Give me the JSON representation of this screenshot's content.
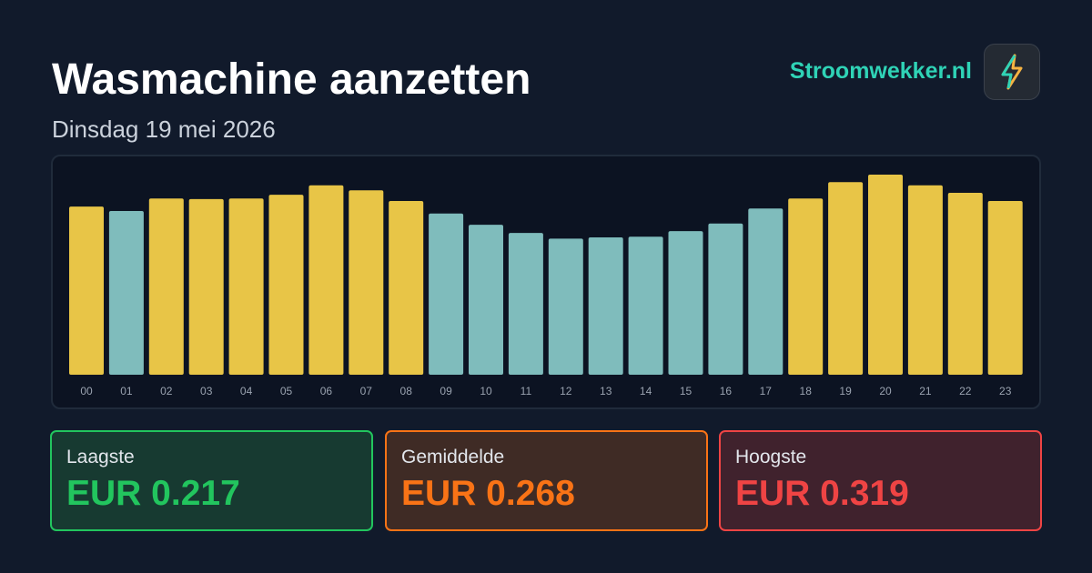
{
  "header": {
    "title": "Wasmachine aanzetten",
    "subtitle": "Dinsdag 19 mei 2026",
    "brand": "Stroomwekker.nl"
  },
  "chart_data": {
    "type": "bar",
    "categories": [
      "00",
      "01",
      "02",
      "03",
      "04",
      "05",
      "06",
      "07",
      "08",
      "09",
      "10",
      "11",
      "12",
      "13",
      "14",
      "15",
      "16",
      "17",
      "18",
      "19",
      "20",
      "21",
      "22",
      "23"
    ],
    "values": [
      0.268,
      0.261,
      0.281,
      0.28,
      0.281,
      0.287,
      0.302,
      0.294,
      0.277,
      0.257,
      0.239,
      0.226,
      0.217,
      0.219,
      0.22,
      0.229,
      0.241,
      0.265,
      0.281,
      0.307,
      0.319,
      0.302,
      0.29,
      0.277
    ],
    "colors": [
      "#e8c547",
      "#7fbcbc",
      "#e8c547",
      "#e8c547",
      "#e8c547",
      "#e8c547",
      "#e8c547",
      "#e8c547",
      "#e8c547",
      "#7fbcbc",
      "#7fbcbc",
      "#7fbcbc",
      "#7fbcbc",
      "#7fbcbc",
      "#7fbcbc",
      "#7fbcbc",
      "#7fbcbc",
      "#7fbcbc",
      "#e8c547",
      "#e8c547",
      "#e8c547",
      "#e8c547",
      "#e8c547",
      "#e8c547"
    ]
  },
  "stats": [
    {
      "label": "Laagste",
      "value": "EUR 0.217"
    },
    {
      "label": "Gemiddelde",
      "value": "EUR 0.268"
    },
    {
      "label": "Hoogste",
      "value": "EUR 0.319"
    }
  ]
}
